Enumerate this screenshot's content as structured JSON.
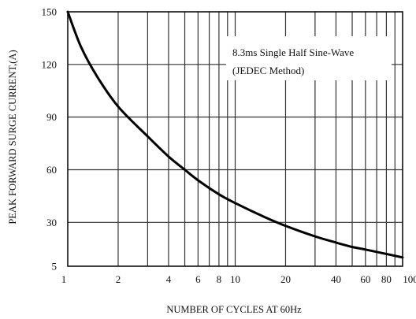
{
  "chart_data": {
    "type": "line",
    "title": "",
    "xlabel": "NUMBER OF CYCLES AT 60Hz",
    "ylabel": "PEAK FORWARD SURGE CURRENT,(A)",
    "x_scale": "log",
    "xlim": [
      1,
      100
    ],
    "ylim": [
      5,
      150
    ],
    "grid": true,
    "x_major_ticks": [
      1,
      10,
      100
    ],
    "x_minor_ticks": [
      2,
      3,
      4,
      5,
      6,
      7,
      8,
      9,
      20,
      30,
      40,
      50,
      60,
      70,
      80,
      90
    ],
    "x_tick_labels": [
      {
        "value": 1,
        "label": "1"
      },
      {
        "value": 2,
        "label": "2"
      },
      {
        "value": 4,
        "label": "4"
      },
      {
        "value": 6,
        "label": "6"
      },
      {
        "value": 8,
        "label": "8"
      },
      {
        "value": 10,
        "label": "10"
      },
      {
        "value": 20,
        "label": "20"
      },
      {
        "value": 40,
        "label": "40"
      },
      {
        "value": 60,
        "label": "60"
      },
      {
        "value": 80,
        "label": "80"
      },
      {
        "value": 100,
        "label": "100"
      }
    ],
    "y_ticks": [
      {
        "value": 5,
        "label": "5"
      },
      {
        "value": 30,
        "label": "30"
      },
      {
        "value": 60,
        "label": "60"
      },
      {
        "value": 90,
        "label": "90"
      },
      {
        "value": 120,
        "label": "120"
      },
      {
        "value": 150,
        "label": "150"
      }
    ],
    "legend_lines": [
      "8.3ms Single Half Sine-Wave",
      "(JEDEC Method)"
    ],
    "legend_position": "top-right",
    "series": [
      {
        "x": [
          1,
          1.2,
          1.5,
          2,
          3,
          4,
          5,
          6,
          8,
          10,
          15,
          20,
          30,
          40,
          50,
          60,
          80,
          100
        ],
        "y": [
          150,
          130,
          113,
          96,
          79,
          67.5,
          60,
          54,
          46,
          41,
          33,
          28,
          22,
          18.5,
          16,
          14.5,
          12,
          10
        ]
      }
    ]
  }
}
